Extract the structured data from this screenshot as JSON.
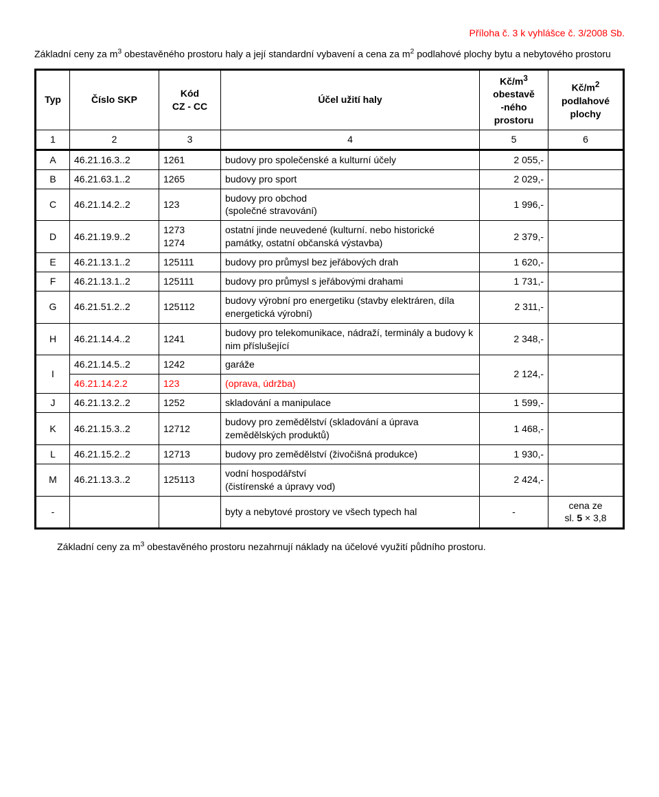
{
  "header_right": "Příloha č. 3 k vyhlášce č. 3/2008  Sb.",
  "title_html": "Základní ceny za m<sup>3</sup> obestavěného prostoru haly a její standardní vybavení a cena  za m<sup>2</sup> podlahové plochy bytu a nebytového prostoru",
  "columns": {
    "typ": "Typ",
    "skp": "Číslo SKP",
    "kod_html": "Kód<br>CZ - CC",
    "ucel": "Účel užití haly",
    "kc1_html": "Kč/m<sup>3</sup><br>obestavě<br>-ného<br>prostoru",
    "kc2_html": "Kč/m<sup>2</sup><br>podlahové<br>plochy"
  },
  "numrow": {
    "c1": "1",
    "c2": "2",
    "c3": "3",
    "c4": "4",
    "c5": "5",
    "c6": "6"
  },
  "rows": [
    {
      "typ": "A",
      "skp": "46.21.16.3..2",
      "kod": "1261",
      "ucel": "budovy pro společenské a kulturní účely",
      "kc1": "2 055,-",
      "kc2": ""
    },
    {
      "typ": "B",
      "skp": "46.21.63.1..2",
      "kod": "1265",
      "ucel": "budovy pro sport",
      "kc1": "2 029,-",
      "kc2": ""
    },
    {
      "typ": "C",
      "skp": "46.21.14.2..2",
      "kod": "123",
      "ucel": "budovy pro obchod<br>(společné stravování)",
      "kc1": "1 996,-",
      "kc2": ""
    },
    {
      "typ": "D",
      "skp": "46.21.19.9..2",
      "kod": "1273<br>1274",
      "ucel": "ostatní jinde neuvedené (kulturní. nebo historické památky, ostatní občanská výstavba)",
      "kc1": "2 379,-",
      "kc2": ""
    },
    {
      "typ": "E",
      "skp": "46.21.13.1..2",
      "kod": "125111",
      "ucel": "budovy pro průmysl bez jeřábových drah",
      "kc1": "1 620,-",
      "kc2": ""
    },
    {
      "typ": "F",
      "skp": "46.21.13.1..2",
      "kod": "125111",
      "ucel": "budovy pro průmysl  s jeřábovými drahami",
      "kc1": "1 731,-",
      "kc2": ""
    },
    {
      "typ": "G",
      "skp": "46.21.51.2..2",
      "kod": "125112",
      "ucel": "budovy výrobní pro energetiku (stavby elektráren, díla energetická  výrobní)",
      "kc1": "2 311,-",
      "kc2": ""
    },
    {
      "typ": "H",
      "skp": "46.21.14.4..2",
      "kod": "1241",
      "ucel": "budovy pro telekomunikace, nádraží, terminály a budovy k nim příslušející",
      "kc1": "2 348,-",
      "kc2": ""
    }
  ],
  "rowI": {
    "typ": "I",
    "line1": {
      "skp": "46.21.14.5..2",
      "kod": "1242",
      "ucel": "garáže"
    },
    "line2": {
      "skp": "46.21.14.2.2",
      "kod": "123",
      "ucel": "(oprava, údržba)"
    },
    "kc1": "2 124,-",
    "kc2": ""
  },
  "rows2": [
    {
      "typ": "J",
      "skp": "46.21.13.2..2",
      "kod": "1252",
      "ucel": "skladování a manipulace",
      "kc1": "1 599,-",
      "kc2": ""
    },
    {
      "typ": "K",
      "skp": "46.21.15.3..2",
      "kod": "12712",
      "ucel": "budovy pro zemědělství (skladování a úprava zemědělských produktů)",
      "kc1": "1 468,-",
      "kc2": ""
    },
    {
      "typ": "L",
      "skp": "46.21.15.2..2",
      "kod": "12713",
      "ucel": "budovy pro zemědělství (živočišná produkce)",
      "kc1": "1 930,-",
      "kc2": ""
    },
    {
      "typ": "M",
      "skp": "46.21.13.3..2",
      "kod": "125113",
      "ucel": "vodní hospodářství<br>(čistírenské a úpravy vod)",
      "kc1": "2 424,-",
      "kc2": ""
    }
  ],
  "lastrow": {
    "typ": "-",
    "skp": "",
    "kod": "",
    "ucel": "byty a nebytové prostory ve všech typech hal",
    "kc1": "-",
    "kc2": "cena ze<br>sl. <b>5</b> × 3,8"
  },
  "footnote_html": "Základní ceny za m<sup>3</sup> obestavěného prostoru nezahrnují náklady na účelové využití půdního prostoru."
}
